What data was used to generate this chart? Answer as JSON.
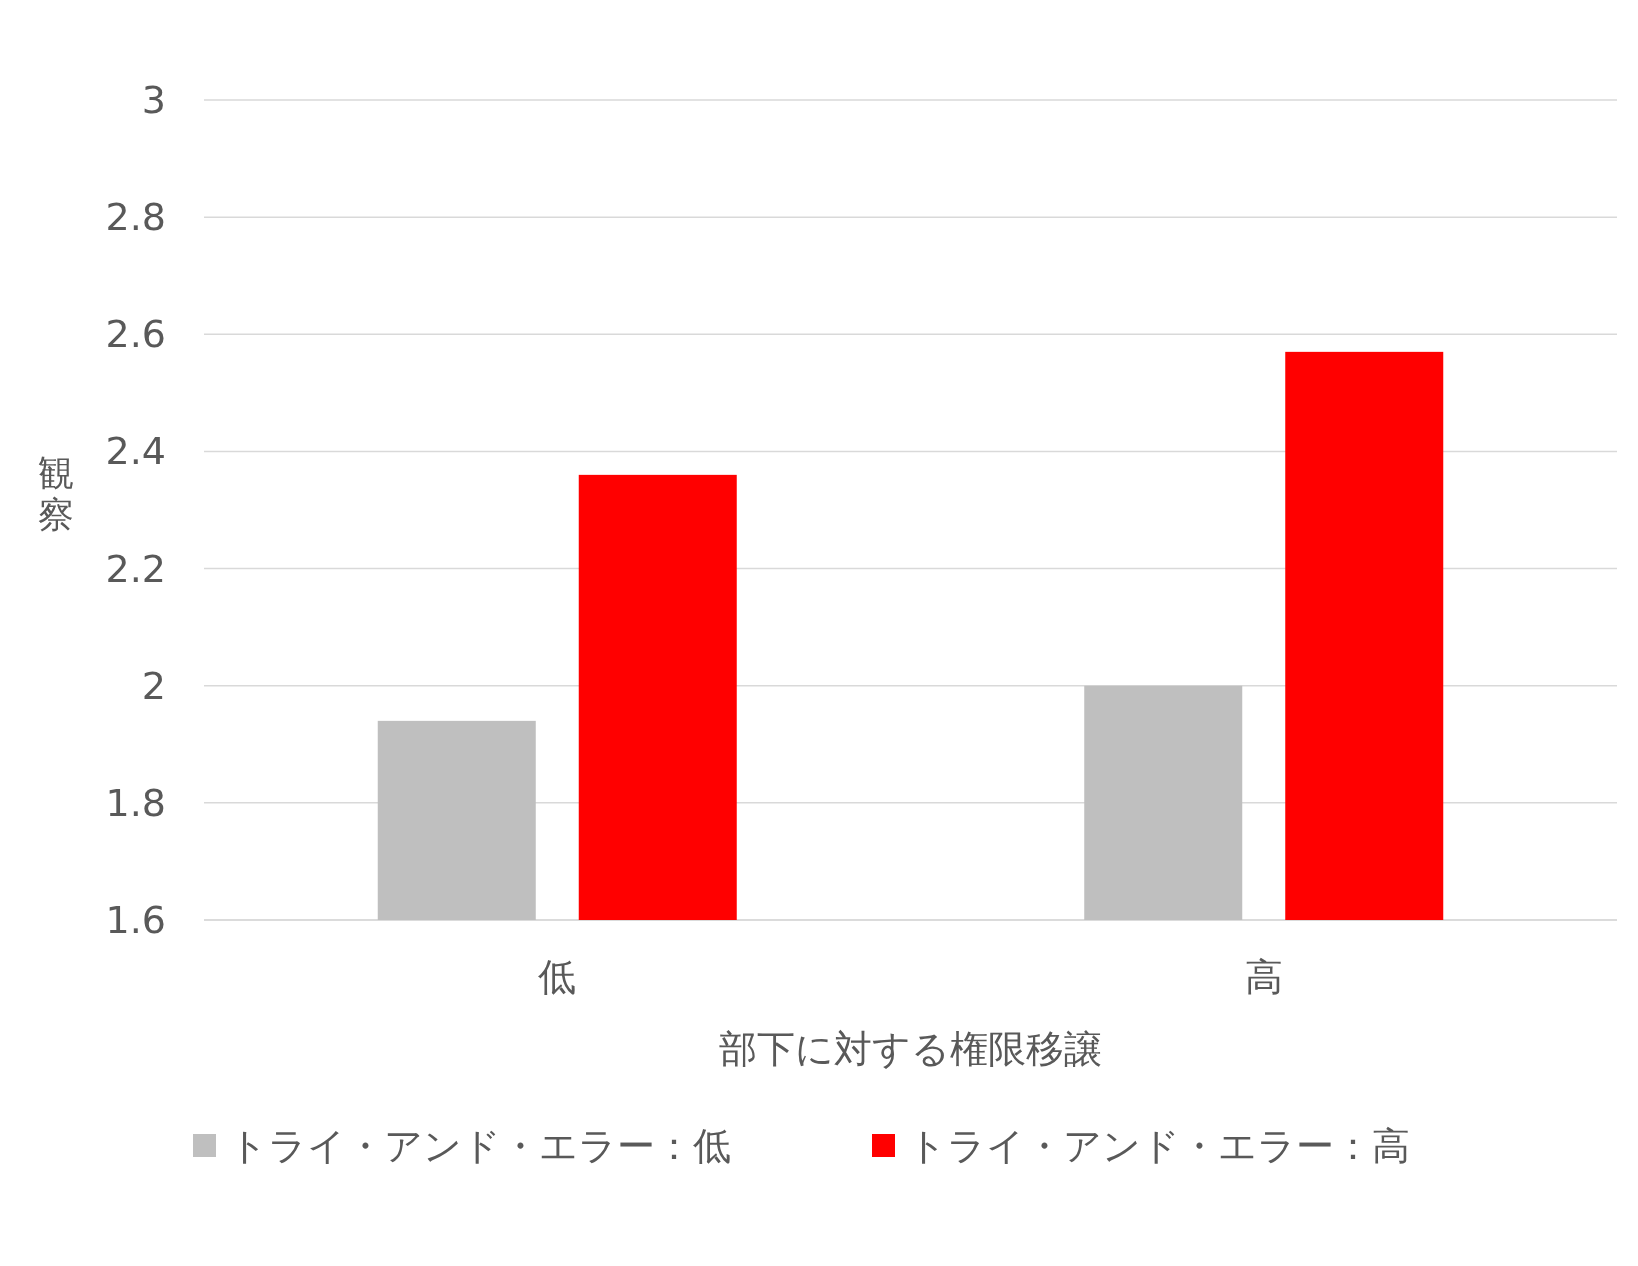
{
  "chart_data": {
    "type": "bar",
    "xlabel": "部下に対する権限移譲",
    "ylabel": "観察",
    "categories": [
      "低",
      "高"
    ],
    "series": [
      {
        "name": "トライ・アンド・エラー：低",
        "color": "#bfbfbf",
        "values": [
          1.94,
          2.0
        ]
      },
      {
        "name": "トライ・アンド・エラー：高",
        "color": "#ff0000",
        "values": [
          2.36,
          2.57
        ]
      }
    ],
    "ylim": [
      1.6,
      3
    ],
    "yticks": [
      1.6,
      1.8,
      2,
      2.2,
      2.4,
      2.6,
      2.8,
      3
    ],
    "grid": "y",
    "legend": "bottom"
  }
}
